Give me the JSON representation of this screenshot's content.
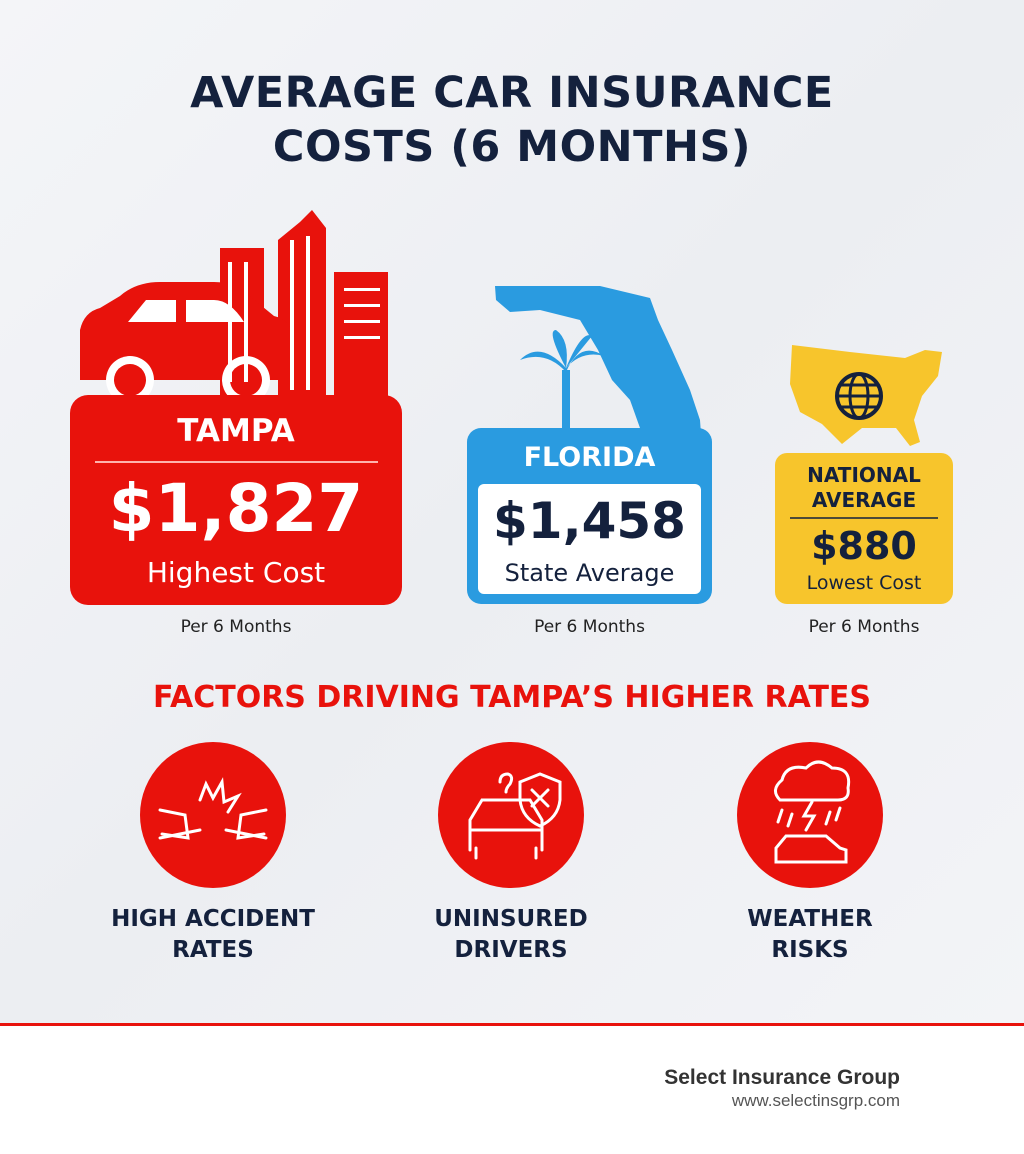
{
  "title": "AVERAGE CAR INSURANCE COSTS (6 MONTHS)",
  "cards": [
    {
      "label": "TAMPA",
      "amount": "$1,827",
      "note": "Highest Cost",
      "period": "Per 6 Months"
    },
    {
      "label": "FLORIDA",
      "amount": "$1,458",
      "note": "State Average",
      "period": "Per 6 Months"
    },
    {
      "label": "NATIONAL AVERAGE",
      "amount": "$880",
      "note": "Lowest Cost",
      "period": "Per 6 Months"
    }
  ],
  "factors": {
    "heading": "FACTORS DRIVING TAMPA’S HIGHER RATES",
    "items": [
      "HIGH ACCIDENT RATES",
      "UNINSURED DRIVERS",
      "WEATHER RISKS"
    ]
  },
  "footer": {
    "company": "Select Insurance Group",
    "url": "www.selectinsgrp.com"
  }
}
